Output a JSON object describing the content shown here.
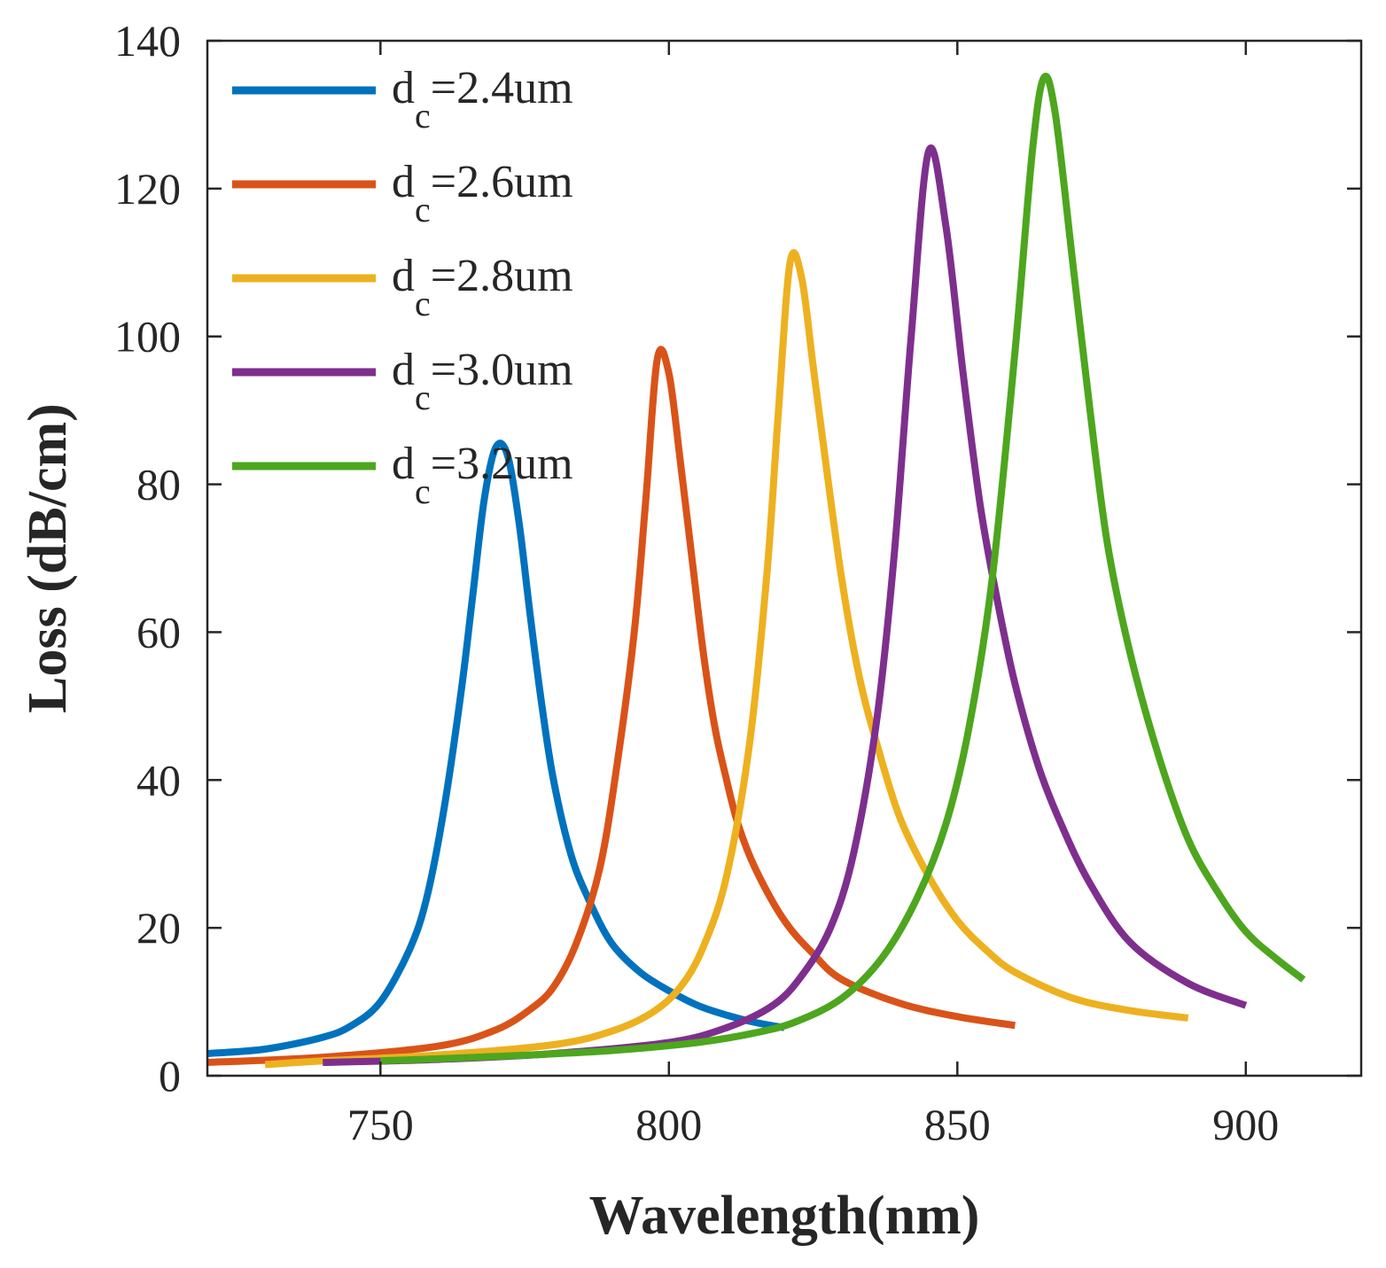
{
  "chart_data": {
    "type": "line",
    "title": "",
    "xlabel": "Wavelength(nm)",
    "ylabel": "Loss (dB/cm)",
    "xlim": [
      720,
      920
    ],
    "ylim": [
      0,
      140
    ],
    "xticks": [
      750,
      800,
      850,
      900
    ],
    "yticks": [
      0,
      20,
      40,
      60,
      80,
      100,
      120,
      140
    ],
    "legend_position": "top-left",
    "grid": false,
    "series": [
      {
        "name": "dc=2.4um",
        "label_main": "d",
        "label_sub": "c",
        "label_rest": "=2.4um",
        "color": "#0072BD",
        "x": [
          720,
          730,
          740,
          745,
          750,
          755,
          758,
          761,
          764,
          766,
          768,
          770,
          772,
          774,
          776,
          778,
          780,
          783,
          786,
          790,
          795,
          800,
          805,
          810,
          815,
          820
        ],
        "y": [
          3,
          3.6,
          5.2,
          6.8,
          10,
          17,
          24,
          36,
          52,
          65,
          78,
          85,
          84,
          75,
          62,
          50,
          40,
          30,
          24,
          18,
          14,
          11.5,
          9.5,
          8.2,
          7.2,
          6.5
        ]
      },
      {
        "name": "dc=2.6um",
        "label_main": "d",
        "label_sub": "c",
        "label_rest": "=2.6um",
        "color": "#D95319",
        "x": [
          720,
          740,
          760,
          770,
          776,
          780,
          784,
          788,
          791,
          794,
          796,
          798,
          800,
          802,
          804,
          806,
          808,
          810,
          812,
          815,
          820,
          825,
          830,
          840,
          850,
          860
        ],
        "y": [
          1.8,
          2.5,
          4,
          6.2,
          9,
          12,
          18,
          28,
          42,
          60,
          78,
          97,
          95,
          83,
          70,
          57,
          47,
          40,
          34,
          28,
          21,
          16.5,
          13,
          9.8,
          8,
          6.8
        ]
      },
      {
        "name": "dc=2.8um",
        "label_main": "d",
        "label_sub": "c",
        "label_rest": "=2.8um",
        "color": "#EDB120",
        "x": [
          730,
          740,
          760,
          780,
          790,
          797,
          802,
          806,
          810,
          814,
          817,
          819,
          821,
          823,
          825,
          827,
          830,
          833,
          836,
          840,
          845,
          850,
          855,
          860,
          870,
          880,
          890
        ],
        "y": [
          1.5,
          2,
          2.8,
          4.2,
          6,
          8.5,
          12,
          17.5,
          27,
          45,
          68,
          90,
          110,
          108,
          96,
          84,
          67,
          54,
          45,
          35,
          27,
          21,
          17,
          14,
          10.5,
          8.8,
          7.8
        ]
      },
      {
        "name": "dc=3.0um",
        "label_main": "d",
        "label_sub": "c",
        "label_rest": "=3.0um",
        "color": "#7E2F8E",
        "x": [
          740,
          760,
          780,
          800,
          810,
          818,
          823,
          828,
          832,
          836,
          839,
          842,
          845,
          848,
          851,
          854,
          857,
          860,
          864,
          868,
          873,
          880,
          890,
          900
        ],
        "y": [
          1.8,
          2.2,
          3,
          4.5,
          6.5,
          9.5,
          13.5,
          20,
          30,
          48,
          70,
          100,
          125,
          115,
          95,
          77,
          64,
          53,
          42,
          34,
          26,
          18,
          12.5,
          9.5
        ]
      },
      {
        "name": "dc=3.2um",
        "label_main": "d",
        "label_sub": "c",
        "label_rest": "=3.2um",
        "color": "#4DA61E",
        "x": [
          750,
          770,
          790,
          805,
          815,
          822,
          830,
          837,
          843,
          848,
          852,
          856,
          860,
          863,
          865,
          867,
          870,
          873,
          876,
          880,
          885,
          890,
          895,
          900,
          905,
          910
        ],
        "y": [
          2,
          2.6,
          3.4,
          4.5,
          5.8,
          7.3,
          10.5,
          16,
          24,
          34,
          47,
          67,
          98,
          125,
          135,
          130,
          110,
          90,
          72,
          57,
          43,
          32,
          25,
          19.5,
          16,
          13
        ]
      }
    ]
  }
}
